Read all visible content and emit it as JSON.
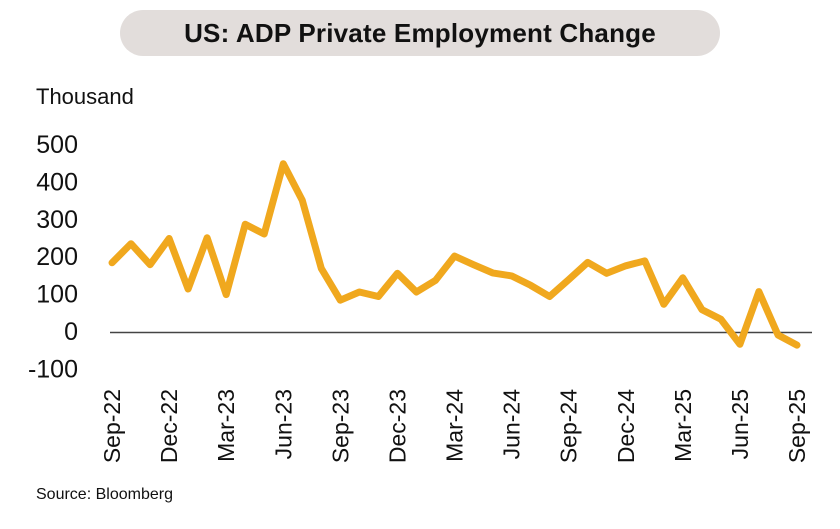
{
  "title": "US: ADP Private Employment Change",
  "unit_label": "Thousand",
  "source": "Source: Bloomberg",
  "colors": {
    "line": "#F0A81E",
    "title_pill_bg": "#E2DDDB",
    "axis_line": "#444444",
    "text": "#111111"
  },
  "chart_data": {
    "type": "line",
    "title": "US: ADP Private Employment Change",
    "xlabel": "",
    "ylabel": "Thousand",
    "ylim": [
      -100,
      500
    ],
    "y_ticks": [
      500,
      400,
      300,
      200,
      100,
      0,
      -100
    ],
    "grid": false,
    "legend": false,
    "line_color": "#F0A81E",
    "x": [
      "Sep-22",
      "Oct-22",
      "Nov-22",
      "Dec-22",
      "Jan-23",
      "Feb-23",
      "Mar-23",
      "Apr-23",
      "May-23",
      "Jun-23",
      "Jul-23",
      "Aug-23",
      "Sep-23",
      "Oct-23",
      "Nov-23",
      "Dec-23",
      "Jan-24",
      "Feb-24",
      "Mar-24",
      "Apr-24",
      "May-24",
      "Jun-24",
      "Jul-24",
      "Aug-24",
      "Sep-24",
      "Oct-24",
      "Nov-24",
      "Dec-24",
      "Jan-25",
      "Feb-25",
      "Mar-25",
      "Apr-25",
      "May-25",
      "Jun-25",
      "Jul-25",
      "Aug-25",
      "Sep-25"
    ],
    "values": [
      185,
      236,
      180,
      250,
      115,
      252,
      100,
      288,
      262,
      450,
      352,
      170,
      85,
      107,
      95,
      157,
      107,
      138,
      203,
      180,
      158,
      150,
      125,
      95,
      140,
      186,
      157,
      177,
      190,
      74,
      145,
      60,
      34,
      -33,
      108,
      -8,
      -35
    ],
    "x_tick_labels": [
      "Sep-22",
      "Dec-22",
      "Mar-23",
      "Jun-23",
      "Sep-23",
      "Dec-23",
      "Mar-24",
      "Jun-24",
      "Sep-24",
      "Dec-24",
      "Mar-25",
      "Jun-25",
      "Sep-25"
    ],
    "x_tick_interval": 3
  }
}
